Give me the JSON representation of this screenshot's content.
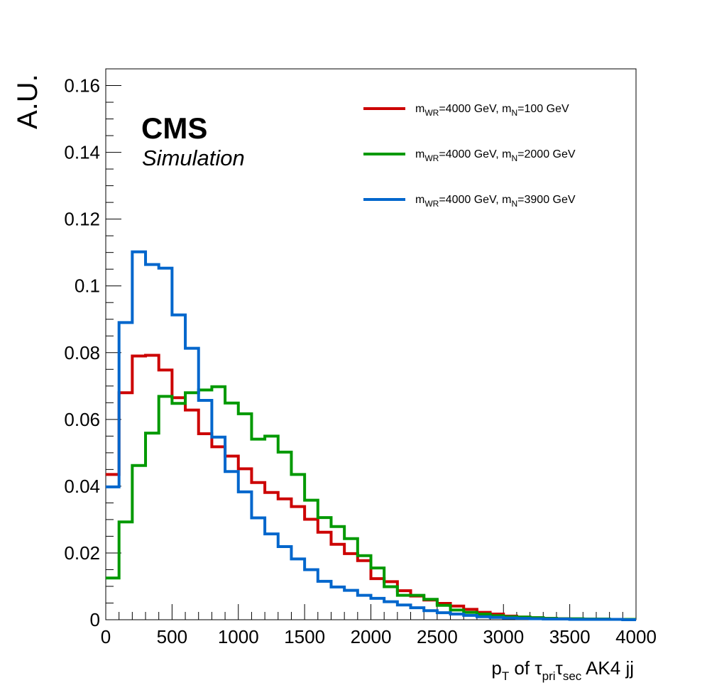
{
  "chart_data": {
    "type": "line",
    "style": "step-histogram",
    "xlabel": {
      "p": "p",
      "t_sub": "T",
      "of": " of ",
      "tau1": "τ",
      "pri_sub": "pri",
      "tau2": "τ",
      "sec_sub": "sec",
      "rest": " AK4 jj"
    },
    "ylabel": "A.U.",
    "xlim": [
      0,
      4000
    ],
    "ylim": [
      0,
      0.165
    ],
    "xticks": [
      0,
      500,
      1000,
      1500,
      2000,
      2500,
      3000,
      3500,
      4000
    ],
    "xtick_labels": [
      "0",
      "500",
      "1000",
      "1500",
      "2000",
      "2500",
      "3000",
      "3500",
      "4000"
    ],
    "yticks": [
      0,
      0.02,
      0.04,
      0.06,
      0.08,
      0.1,
      0.12,
      0.14,
      0.16
    ],
    "ytick_labels": [
      "0",
      "0.02",
      "0.04",
      "0.06",
      "0.08",
      "0.1",
      "0.12",
      "0.14",
      "0.16"
    ],
    "bin_width": 100,
    "label_cms": "CMS",
    "label_simulation": "Simulation",
    "legend_placement": "top-right",
    "series": [
      {
        "name": "m_WR=4000 GeV, m_N=100 GeV",
        "legend": {
          "m1": "m",
          "sub1": "WR",
          "mid": "=4000 GeV, m",
          "sub2": "N",
          "end": "=100 GeV"
        },
        "color": "#cc0000",
        "values": [
          0.0435,
          0.068,
          0.079,
          0.0792,
          0.0748,
          0.0665,
          0.0628,
          0.0557,
          0.0518,
          0.049,
          0.0452,
          0.0411,
          0.0381,
          0.0362,
          0.0339,
          0.0301,
          0.0262,
          0.0226,
          0.0198,
          0.0177,
          0.0123,
          0.0114,
          0.0087,
          0.0071,
          0.0059,
          0.0049,
          0.0041,
          0.0031,
          0.0022,
          0.0017,
          0.0011,
          0.0008,
          0.0006,
          0.0004,
          0.0003,
          0.0002,
          0.0002,
          0.0001,
          0.0001,
          0.0001
        ]
      },
      {
        "name": "m_WR=4000 GeV, m_N=2000 GeV",
        "legend": {
          "m1": "m",
          "sub1": "WR",
          "mid": "=4000 GeV, m",
          "sub2": "N",
          "end": "=2000 GeV"
        },
        "color": "#009900",
        "values": [
          0.0125,
          0.0293,
          0.0462,
          0.0559,
          0.0669,
          0.0648,
          0.068,
          0.0688,
          0.0698,
          0.0649,
          0.0617,
          0.0541,
          0.055,
          0.0502,
          0.0435,
          0.0358,
          0.0306,
          0.0279,
          0.0243,
          0.0192,
          0.0155,
          0.0099,
          0.0073,
          0.0073,
          0.0061,
          0.0043,
          0.0029,
          0.0022,
          0.0017,
          0.0012,
          0.0009,
          0.0008,
          0.0006,
          0.0004,
          0.0003,
          0.0003,
          0.0002,
          0.0002,
          0.0001,
          0.0001
        ]
      },
      {
        "name": "m_WR=4000 GeV, m_N=3900 GeV",
        "legend": {
          "m1": "m",
          "sub1": "WR",
          "mid": "=4000 GeV, m",
          "sub2": "N",
          "end": "=3900 GeV"
        },
        "color": "#0066cc",
        "values": [
          0.0398,
          0.089,
          0.1102,
          0.1064,
          0.1053,
          0.0913,
          0.0813,
          0.0657,
          0.0547,
          0.0444,
          0.0383,
          0.0305,
          0.0257,
          0.0219,
          0.0182,
          0.015,
          0.0115,
          0.0098,
          0.0088,
          0.0073,
          0.0064,
          0.0054,
          0.0044,
          0.0036,
          0.0027,
          0.0021,
          0.0017,
          0.0013,
          0.0009,
          0.0007,
          0.0005,
          0.0004,
          0.0003,
          0.0002,
          0.0002,
          0.0001,
          0.0001,
          0.0001,
          0.0001,
          0.0
        ]
      }
    ]
  }
}
